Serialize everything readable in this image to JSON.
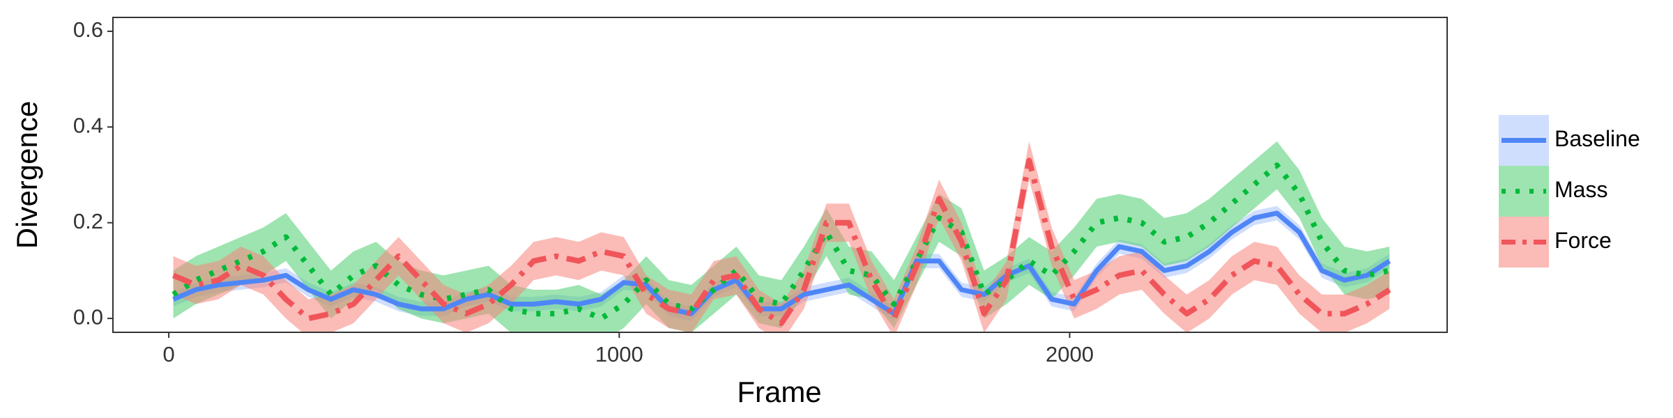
{
  "chart_data": {
    "type": "line",
    "xlabel": "Frame",
    "ylabel": "Divergence",
    "x": [
      10,
      60,
      110,
      160,
      210,
      260,
      310,
      360,
      410,
      460,
      510,
      560,
      610,
      660,
      710,
      760,
      810,
      860,
      910,
      960,
      1010,
      1060,
      1110,
      1160,
      1210,
      1260,
      1310,
      1360,
      1410,
      1460,
      1510,
      1560,
      1610,
      1660,
      1710,
      1760,
      1810,
      1860,
      1910,
      1960,
      2010,
      2060,
      2110,
      2160,
      2210,
      2260,
      2310,
      2360,
      2410,
      2460,
      2510,
      2560,
      2610,
      2660,
      2710
    ],
    "xlim": [
      -124,
      2838
    ],
    "xticks": [
      0,
      1000,
      2000
    ],
    "ylim": [
      -0.029,
      0.629
    ],
    "yticks": [
      {
        "value": 0,
        "label": "0.0"
      },
      0.2,
      0.4,
      0.6
    ],
    "grid": false,
    "legend": "right",
    "series": [
      {
        "name": "Baseline",
        "color": "#4f86f7",
        "fill": "#a9c3fb",
        "dash": "solid",
        "values": [
          0.04,
          0.06,
          0.07,
          0.075,
          0.08,
          0.09,
          0.06,
          0.04,
          0.06,
          0.05,
          0.03,
          0.02,
          0.02,
          0.04,
          0.05,
          0.03,
          0.03,
          0.035,
          0.03,
          0.04,
          0.075,
          0.07,
          0.02,
          0.01,
          0.06,
          0.08,
          0.02,
          0.02,
          0.05,
          0.06,
          0.07,
          0.04,
          0.01,
          0.12,
          0.12,
          0.06,
          0.05,
          0.09,
          0.11,
          0.04,
          0.03,
          0.1,
          0.15,
          0.14,
          0.1,
          0.11,
          0.14,
          0.18,
          0.21,
          0.22,
          0.18,
          0.1,
          0.08,
          0.09,
          0.12
        ],
        "lower": [
          0.025,
          0.045,
          0.055,
          0.06,
          0.065,
          0.075,
          0.045,
          0.025,
          0.045,
          0.035,
          0.015,
          0.005,
          0.005,
          0.025,
          0.035,
          0.015,
          0.015,
          0.02,
          0.015,
          0.025,
          0.06,
          0.055,
          0.005,
          -0.005,
          0.045,
          0.065,
          0.005,
          0.005,
          0.035,
          0.045,
          0.055,
          0.025,
          -0.005,
          0.105,
          0.105,
          0.045,
          0.035,
          0.075,
          0.095,
          0.025,
          0.015,
          0.085,
          0.135,
          0.125,
          0.085,
          0.095,
          0.125,
          0.165,
          0.195,
          0.205,
          0.165,
          0.085,
          0.065,
          0.075,
          0.105
        ],
        "upper": [
          0.055,
          0.075,
          0.085,
          0.09,
          0.095,
          0.105,
          0.075,
          0.055,
          0.075,
          0.065,
          0.045,
          0.035,
          0.035,
          0.055,
          0.065,
          0.045,
          0.045,
          0.05,
          0.045,
          0.055,
          0.09,
          0.085,
          0.035,
          0.025,
          0.075,
          0.095,
          0.035,
          0.035,
          0.065,
          0.075,
          0.085,
          0.055,
          0.025,
          0.135,
          0.135,
          0.075,
          0.065,
          0.105,
          0.125,
          0.055,
          0.045,
          0.115,
          0.165,
          0.155,
          0.115,
          0.125,
          0.155,
          0.195,
          0.225,
          0.235,
          0.195,
          0.115,
          0.095,
          0.105,
          0.135
        ]
      },
      {
        "name": "Mass",
        "color": "#00ba38",
        "fill": "#4ccd6f",
        "dash": "dotted",
        "values": [
          0.05,
          0.08,
          0.1,
          0.12,
          0.14,
          0.17,
          0.11,
          0.05,
          0.09,
          0.11,
          0.07,
          0.05,
          0.04,
          0.05,
          0.06,
          0.02,
          0.01,
          0.01,
          0.02,
          0.0,
          0.03,
          0.08,
          0.03,
          0.02,
          0.06,
          0.1,
          0.04,
          0.03,
          0.1,
          0.18,
          0.1,
          0.09,
          0.03,
          0.12,
          0.21,
          0.18,
          0.05,
          0.08,
          0.12,
          0.09,
          0.14,
          0.2,
          0.21,
          0.2,
          0.16,
          0.17,
          0.2,
          0.24,
          0.28,
          0.32,
          0.26,
          0.16,
          0.1,
          0.09,
          0.1
        ],
        "lower": [
          0.0,
          0.03,
          0.05,
          0.07,
          0.09,
          0.12,
          0.06,
          0.0,
          0.04,
          0.06,
          0.02,
          0.0,
          -0.01,
          0.0,
          0.01,
          -0.03,
          -0.04,
          -0.04,
          -0.03,
          -0.05,
          -0.02,
          0.03,
          -0.02,
          -0.03,
          0.01,
          0.05,
          -0.01,
          -0.02,
          0.05,
          0.13,
          0.05,
          0.04,
          -0.02,
          0.07,
          0.16,
          0.13,
          0.0,
          0.03,
          0.07,
          0.04,
          0.09,
          0.15,
          0.16,
          0.15,
          0.11,
          0.12,
          0.15,
          0.19,
          0.23,
          0.27,
          0.21,
          0.11,
          0.05,
          0.04,
          0.05
        ],
        "upper": [
          0.1,
          0.13,
          0.15,
          0.17,
          0.19,
          0.22,
          0.16,
          0.1,
          0.14,
          0.16,
          0.12,
          0.1,
          0.09,
          0.1,
          0.11,
          0.07,
          0.06,
          0.06,
          0.07,
          0.05,
          0.08,
          0.13,
          0.08,
          0.07,
          0.11,
          0.15,
          0.09,
          0.08,
          0.15,
          0.23,
          0.15,
          0.14,
          0.08,
          0.17,
          0.26,
          0.23,
          0.1,
          0.13,
          0.17,
          0.14,
          0.19,
          0.25,
          0.26,
          0.25,
          0.21,
          0.22,
          0.25,
          0.29,
          0.33,
          0.37,
          0.31,
          0.21,
          0.15,
          0.14,
          0.15
        ]
      },
      {
        "name": "Force",
        "color": "#f0555a",
        "fill": "#f8837c",
        "dash": "dashdot",
        "values": [
          0.09,
          0.07,
          0.08,
          0.11,
          0.09,
          0.04,
          0.0,
          0.01,
          0.03,
          0.08,
          0.13,
          0.08,
          0.03,
          0.01,
          0.03,
          0.07,
          0.12,
          0.13,
          0.12,
          0.14,
          0.13,
          0.05,
          0.02,
          0.01,
          0.08,
          0.09,
          0.02,
          -0.01,
          0.06,
          0.2,
          0.2,
          0.08,
          0.0,
          0.11,
          0.25,
          0.16,
          0.01,
          0.08,
          0.33,
          0.15,
          0.04,
          0.06,
          0.09,
          0.1,
          0.05,
          0.01,
          0.04,
          0.09,
          0.12,
          0.11,
          0.05,
          0.01,
          0.01,
          0.03,
          0.06
        ],
        "lower": [
          0.05,
          0.03,
          0.04,
          0.07,
          0.05,
          0.0,
          -0.04,
          -0.03,
          -0.01,
          0.04,
          0.09,
          0.04,
          -0.01,
          -0.03,
          -0.01,
          0.03,
          0.08,
          0.09,
          0.08,
          0.1,
          0.09,
          0.01,
          -0.02,
          -0.03,
          0.04,
          0.05,
          -0.02,
          -0.05,
          0.02,
          0.16,
          0.16,
          0.04,
          -0.04,
          0.07,
          0.21,
          0.12,
          -0.03,
          0.04,
          0.29,
          0.11,
          0.0,
          0.02,
          0.05,
          0.06,
          0.01,
          -0.03,
          0.0,
          0.05,
          0.08,
          0.07,
          0.01,
          -0.03,
          -0.03,
          -0.01,
          0.02
        ],
        "upper": [
          0.13,
          0.11,
          0.12,
          0.15,
          0.13,
          0.08,
          0.04,
          0.05,
          0.07,
          0.12,
          0.17,
          0.12,
          0.07,
          0.05,
          0.07,
          0.11,
          0.16,
          0.17,
          0.16,
          0.18,
          0.17,
          0.09,
          0.06,
          0.05,
          0.12,
          0.13,
          0.06,
          0.03,
          0.1,
          0.24,
          0.24,
          0.12,
          0.04,
          0.15,
          0.29,
          0.2,
          0.05,
          0.12,
          0.37,
          0.19,
          0.08,
          0.1,
          0.13,
          0.14,
          0.09,
          0.05,
          0.08,
          0.13,
          0.16,
          0.15,
          0.09,
          0.05,
          0.05,
          0.07,
          0.1
        ]
      }
    ]
  }
}
